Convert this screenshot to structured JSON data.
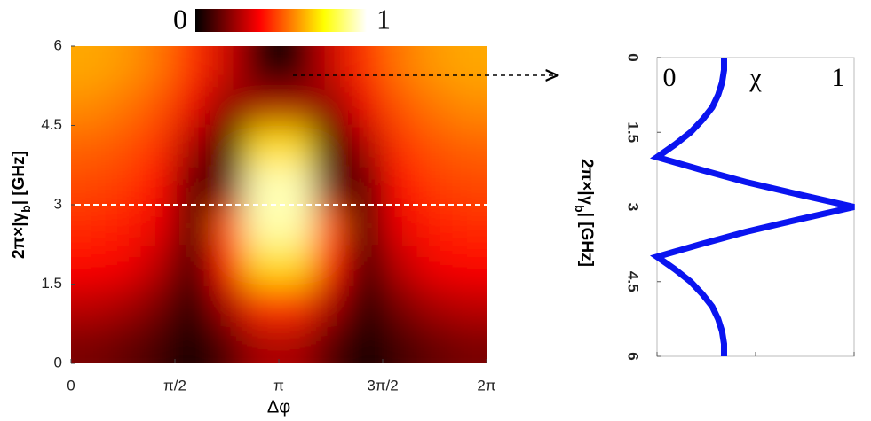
{
  "chart_data": [
    {
      "type": "heatmap",
      "xlabel": "Δφ",
      "ylabel": {
        "pre": "2π×|γ",
        "sub": "b",
        "post": "| [GHz]"
      },
      "xlim": [
        0,
        6.2832
      ],
      "ylim": [
        0,
        6
      ],
      "xticks": [
        {
          "value": 0,
          "label": "0"
        },
        {
          "value": 1.5708,
          "label": "π/2"
        },
        {
          "value": 3.1416,
          "label": "π"
        },
        {
          "value": 4.7124,
          "label": "3π/2"
        },
        {
          "value": 6.2832,
          "label": "2π"
        }
      ],
      "yticks": [
        0,
        1.5,
        3,
        4.5,
        6
      ],
      "colormap": "hot",
      "clim": [
        0,
        1
      ],
      "dashed_line_y": 3,
      "values": [
        [
          0.18,
          0.15,
          0.1,
          0.0,
          0.12,
          0.25,
          0.25,
          0.12,
          0.0,
          0.1,
          0.15,
          0.18
        ],
        [
          0.28,
          0.25,
          0.18,
          0.02,
          0.25,
          0.45,
          0.45,
          0.25,
          0.02,
          0.18,
          0.25,
          0.28
        ],
        [
          0.38,
          0.36,
          0.28,
          0.05,
          0.4,
          0.7,
          0.7,
          0.4,
          0.05,
          0.28,
          0.36,
          0.38
        ],
        [
          0.44,
          0.42,
          0.35,
          0.08,
          0.5,
          0.92,
          0.92,
          0.5,
          0.08,
          0.35,
          0.42,
          0.44
        ],
        [
          0.48,
          0.46,
          0.4,
          0.12,
          0.15,
          0.93,
          0.93,
          0.15,
          0.12,
          0.4,
          0.46,
          0.48
        ],
        [
          0.52,
          0.5,
          0.45,
          0.25,
          0.02,
          0.7,
          0.7,
          0.02,
          0.25,
          0.45,
          0.5,
          0.52
        ],
        [
          0.58,
          0.55,
          0.5,
          0.35,
          0.2,
          0.25,
          0.25,
          0.2,
          0.35,
          0.5,
          0.55,
          0.58
        ],
        [
          0.62,
          0.6,
          0.55,
          0.45,
          0.3,
          0.05,
          0.05,
          0.3,
          0.45,
          0.55,
          0.6,
          0.62
        ]
      ]
    },
    {
      "type": "line",
      "ylabel": {
        "pre": "2π×|γ",
        "sub": "b",
        "post": "|  [GHz]"
      },
      "xlim": [
        0,
        6
      ],
      "xticks": [
        0,
        1.5,
        3,
        4.5,
        6
      ],
      "ylim": [
        0,
        1
      ],
      "yticks": [
        0,
        {
          "value": 0.5,
          "label": "χ"
        },
        1
      ],
      "color": "#0a14f0",
      "x": [
        0,
        0.25,
        0.5,
        0.75,
        1,
        1.25,
        1.5,
        1.75,
        2,
        2.25,
        2.5,
        2.75,
        3,
        3.25,
        3.5,
        3.75,
        4,
        4.25,
        4.5,
        4.75,
        5,
        5.25,
        5.5,
        5.75,
        6
      ],
      "values": [
        0.34,
        0.34,
        0.33,
        0.31,
        0.28,
        0.23,
        0.17,
        0.09,
        0,
        0.22,
        0.45,
        0.72,
        1,
        0.72,
        0.45,
        0.22,
        0,
        0.09,
        0.17,
        0.23,
        0.28,
        0.31,
        0.33,
        0.34,
        0.34
      ]
    }
  ]
}
